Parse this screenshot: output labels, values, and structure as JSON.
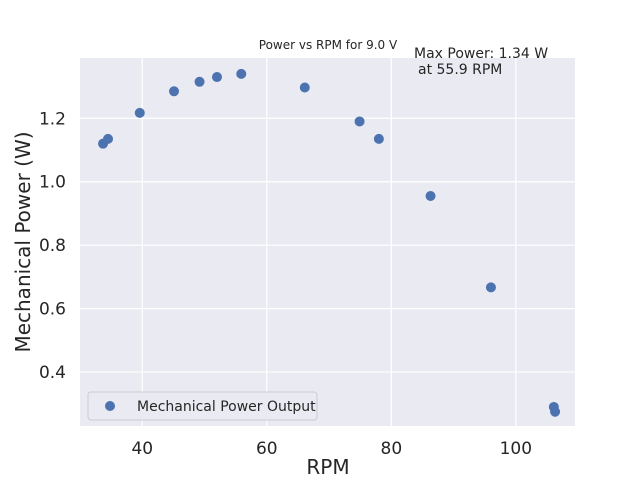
{
  "chart_data": {
    "type": "scatter",
    "title": "Power vs RPM for 9.0 V",
    "xlabel": "RPM",
    "ylabel": "Mechanical Power (W)",
    "xlim": [
      30,
      109.5
    ],
    "ylim": [
      0.23,
      1.39
    ],
    "x_ticks": [
      40,
      60,
      80,
      100
    ],
    "x_tick_labels": [
      "40",
      "60",
      "80",
      "100"
    ],
    "y_ticks": [
      0.4,
      0.6,
      0.8,
      1.0,
      1.2
    ],
    "y_tick_labels": [
      "0.4",
      "0.6",
      "0.8",
      "1.0",
      "1.2"
    ],
    "grid": true,
    "legend_position": "lower-left",
    "annotation_lines": [
      "Max Power: 1.34 W",
      "at 55.9 RPM"
    ],
    "series": [
      {
        "name": "Mechanical Power Output",
        "color": "#4c72b0",
        "x": [
          33.7,
          34.5,
          39.6,
          45.1,
          49.2,
          52.0,
          55.9,
          66.1,
          74.9,
          78.0,
          86.3,
          96.0,
          106.1,
          106.3
        ],
        "y": [
          1.12,
          1.135,
          1.217,
          1.285,
          1.315,
          1.33,
          1.34,
          1.297,
          1.19,
          1.135,
          0.955,
          0.667,
          0.29,
          0.275
        ]
      }
    ]
  }
}
